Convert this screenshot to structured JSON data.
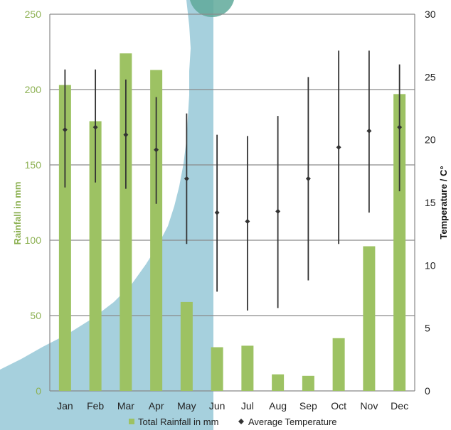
{
  "chart_data": {
    "type": "bar",
    "categories": [
      "Jan",
      "Feb",
      "Mar",
      "Apr",
      "May",
      "Jun",
      "Jul",
      "Aug",
      "Sep",
      "Oct",
      "Nov",
      "Dec"
    ],
    "series": [
      {
        "name": "Total Rainfall in mm",
        "type": "bar",
        "axis": "left",
        "color": "#9dc263",
        "values": [
          203,
          179,
          224,
          213,
          59,
          29,
          30,
          11,
          10,
          35,
          96,
          197
        ]
      },
      {
        "name": "Average Temperature",
        "type": "point-range",
        "axis": "right",
        "color": "#333333",
        "values": [
          20.8,
          21.0,
          20.4,
          19.2,
          16.9,
          14.2,
          13.5,
          14.3,
          16.9,
          19.4,
          20.7,
          21.0
        ],
        "high": [
          25.6,
          25.6,
          24.8,
          23.4,
          22.1,
          20.4,
          20.3,
          21.9,
          25.0,
          27.1,
          27.1,
          26.0
        ],
        "low": [
          16.2,
          16.6,
          16.1,
          14.9,
          11.7,
          7.9,
          6.4,
          6.6,
          8.8,
          11.7,
          14.2,
          15.9
        ]
      }
    ],
    "ylabel": "Rainfall in mm",
    "ylabel_right": "Temperature / C°",
    "ylim": [
      0,
      250
    ],
    "ylim_right": [
      0,
      30
    ],
    "yticks": [
      0,
      50,
      100,
      150,
      200,
      250
    ],
    "yticks_right": [
      0,
      5,
      10,
      15,
      20,
      25,
      30
    ],
    "grid": true,
    "legend": "bottom",
    "legend_entries": [
      "Total Rainfall in mm",
      "Average Temperature"
    ],
    "background_color": "#9ccbd9"
  }
}
